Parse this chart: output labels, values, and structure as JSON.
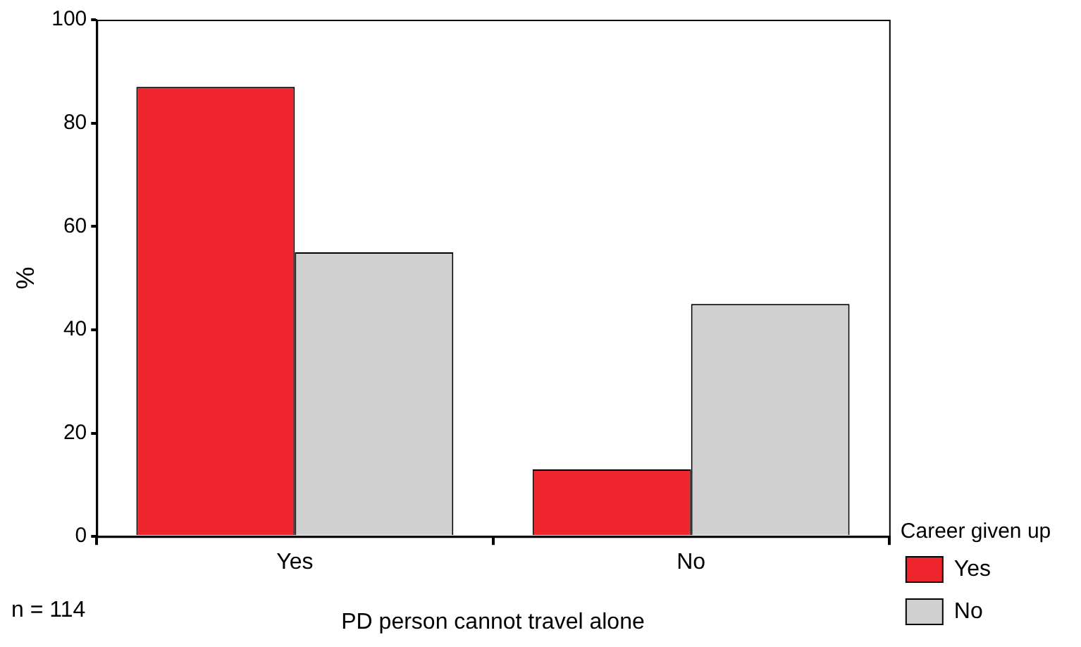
{
  "chart_data": {
    "type": "bar",
    "xlabel": "PD person cannot travel alone",
    "ylabel": "%",
    "legend_title": "Career given up",
    "legend": "bottom right",
    "categories": [
      "Yes",
      "No"
    ],
    "series": [
      {
        "name": "Yes",
        "color": "#ee252d",
        "values": [
          87,
          13
        ]
      },
      {
        "name": "No",
        "color": "#d0d0d0",
        "values": [
          55,
          45
        ]
      }
    ],
    "ylim": [
      0,
      100
    ],
    "yticks": [
      0,
      20,
      40,
      60,
      80,
      100
    ],
    "annotations": [
      "n = 114"
    ]
  }
}
